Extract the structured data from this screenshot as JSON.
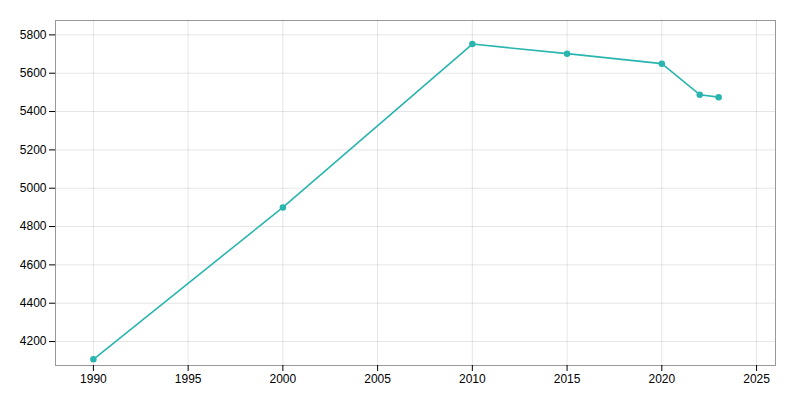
{
  "chart_data": {
    "type": "line",
    "x": [
      1990,
      2000,
      2010,
      2015,
      2020,
      2022,
      2023
    ],
    "values": [
      4107,
      4900,
      5752,
      5702,
      5650,
      5488,
      5475
    ],
    "color": "#2ab5ae",
    "marker": "circle",
    "xlim": [
      1988.0,
      2026.0
    ],
    "ylim": [
      4075,
      5875
    ],
    "xticks": [
      1990,
      1995,
      2000,
      2005,
      2010,
      2015,
      2020,
      2025
    ],
    "yticks": [
      4200,
      4400,
      4600,
      4800,
      5000,
      5200,
      5400,
      5600,
      5800
    ],
    "grid": true
  }
}
